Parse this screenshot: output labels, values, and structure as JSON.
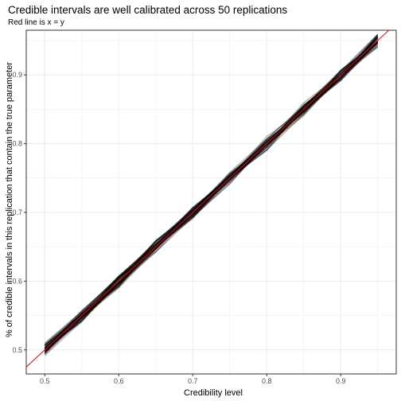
{
  "chart_data": {
    "type": "line",
    "title": "Credible intervals are well calibrated across 50 replications",
    "subtitle": "Red line is x = y",
    "xlabel": "Credibility level",
    "ylabel": "% of credible intervals in this replication that contain the true parameter",
    "xlim": [
      0.475,
      0.975
    ],
    "ylim": [
      0.465,
      0.965
    ],
    "x_ticks": [
      0.5,
      0.6,
      0.7,
      0.8,
      0.9
    ],
    "y_ticks": [
      0.5,
      0.6,
      0.7,
      0.8,
      0.9
    ],
    "x_tick_labels": [
      "0.5",
      "0.6",
      "0.7",
      "0.8",
      "0.9"
    ],
    "y_tick_labels": [
      "0.5",
      "0.6",
      "0.7",
      "0.8",
      "0.9"
    ],
    "grid": true,
    "replications": 50,
    "x": [
      0.5,
      0.55,
      0.6,
      0.65,
      0.7,
      0.75,
      0.8,
      0.85,
      0.9,
      0.95
    ],
    "series_band": {
      "min_offset": -0.012,
      "max_offset": 0.012
    },
    "reference_line": {
      "label": "x = y",
      "color": "#ff0000"
    },
    "colors": {
      "replication": "#000000",
      "reference": "#ff0000",
      "grid": "#ebebeb",
      "border": "#333333"
    }
  }
}
